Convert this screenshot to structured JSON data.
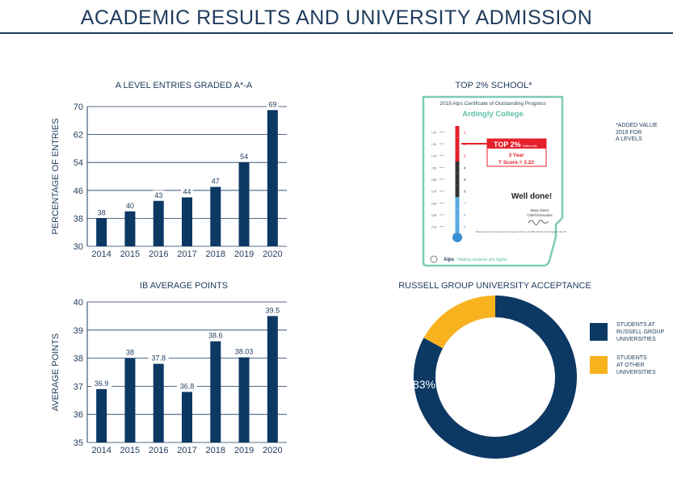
{
  "page": {
    "title": "ACADEMIC RESULTS AND UNIVERSITY ADMISSION"
  },
  "colors": {
    "navy": "#0c3864",
    "gold": "#f7b21e",
    "gridline": "#1f3b5c",
    "cert_border": "#7ecbb8",
    "cert_red": "#e4202a"
  },
  "chart_data": [
    {
      "type": "bar",
      "title": "A LEVEL ENTRIES GRADED A*-A",
      "xlabel": "",
      "ylabel": "PERCENTAGE OF ENTRIES",
      "categories": [
        "2014",
        "2015",
        "2016",
        "2017",
        "2018",
        "2019",
        "2020"
      ],
      "values": [
        38,
        40,
        43,
        44,
        47,
        54,
        69
      ],
      "value_labels": [
        "38",
        "40",
        "43",
        "44",
        "47",
        "54",
        "69"
      ],
      "ylim": [
        30,
        70
      ],
      "yticks": [
        30,
        38,
        46,
        54,
        62,
        70
      ],
      "grid": true
    },
    {
      "type": "bar",
      "title": "IB AVERAGE POINTS",
      "xlabel": "",
      "ylabel": "AVERAGE POINTS",
      "categories": [
        "2014",
        "2015",
        "2016",
        "2017",
        "2018",
        "2019",
        "2020"
      ],
      "values": [
        36.9,
        38,
        37.8,
        36.8,
        38.6,
        38.03,
        39.5
      ],
      "value_labels": [
        "36.9",
        "38",
        "37.8",
        "36.8",
        "38.6",
        "38.03",
        "39.5"
      ],
      "ylim": [
        35,
        40
      ],
      "yticks": [
        35,
        36,
        37,
        38,
        39,
        40
      ],
      "grid": true
    },
    {
      "type": "pie",
      "title": "RUSSELL GROUP UNIVERSITY ACCEPTANCE",
      "donut": true,
      "labels": [
        "STUDENTS AT RUSSELL GROUP UNIVERSITIES",
        "STUDENTS AT OTHER UNIVERSITIES"
      ],
      "values": [
        83,
        17
      ],
      "data_labels": [
        "83%",
        ""
      ],
      "legend_position": "right"
    }
  ],
  "certificate": {
    "section_title": "TOP 2% SCHOOL*",
    "header": "2019 Alps Certificate of Outstanding Progress",
    "school": "Ardingly College",
    "badge_title": "TOP 2%",
    "badge_sub": "Nationally",
    "badge_line1": "3 Year",
    "badge_line2": "T Score = 3.22",
    "well_done": "Well done!",
    "signatory": "Mary Ahern",
    "signatory_role": "Chief Executive",
    "footnote": "National position compared to the 5-year outcomes of 2000 schools and colleges in the UK",
    "footer": "Helping students aim higher",
    "brand": "Alps",
    "scale_numbers": [
      "1",
      "2",
      "3",
      "4",
      "5",
      "6",
      "7",
      "8",
      "9"
    ],
    "scale_values": [
      "1.45",
      "1.20",
      "1.05",
      "0.95",
      "0.85",
      "0.75",
      "0.55",
      "0.35",
      "0.15"
    ]
  },
  "note": "*ADDED VALUE\n2019 FOR\nA LEVELS",
  "legend": {
    "russell": "STUDENTS AT\nRUSSELL GROUP\nUNIVERSITIES",
    "other": "STUDENTS\nAT OTHER\nUNIVERSITIES"
  }
}
